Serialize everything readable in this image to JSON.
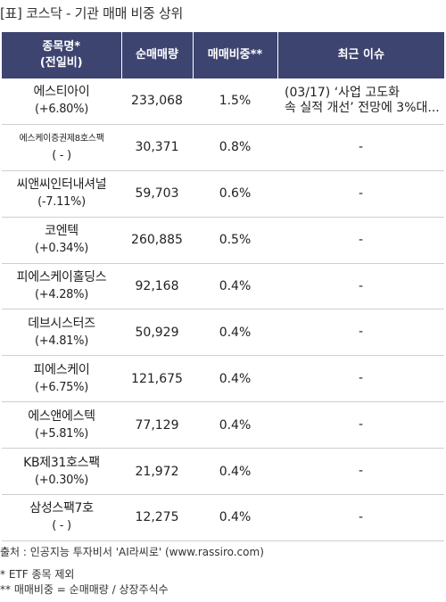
{
  "title": "[표] 코스닥 - 기관 매매 비중 상위",
  "headers": {
    "name_line1": "종목명*",
    "name_line2": "(전일비)",
    "volume": "순매매량",
    "ratio": "매매비중**",
    "issue": "최근 이슈"
  },
  "rows": [
    {
      "name": "에스티아이",
      "change": "(+6.80%)",
      "volume": "233,068",
      "ratio": "1.5%",
      "issue_line1": "(03/17) ‘사업 고도화",
      "issue_line2": "속 실적 개선’ 전망에 3%대..."
    },
    {
      "name": "에스케이증권제8호스팩",
      "change": "( - )",
      "volume": "30,371",
      "ratio": "0.8%",
      "issue_line1": "-",
      "issue_line2": ""
    },
    {
      "name": "씨앤씨인터내셔널",
      "change": "(-7.11%)",
      "volume": "59,703",
      "ratio": "0.6%",
      "issue_line1": "-",
      "issue_line2": ""
    },
    {
      "name": "코엔텍",
      "change": "(+0.34%)",
      "volume": "260,885",
      "ratio": "0.5%",
      "issue_line1": "-",
      "issue_line2": ""
    },
    {
      "name": "피에스케이홀딩스",
      "change": "(+4.28%)",
      "volume": "92,168",
      "ratio": "0.4%",
      "issue_line1": "-",
      "issue_line2": ""
    },
    {
      "name": "데브시스터즈",
      "change": "(+4.81%)",
      "volume": "50,929",
      "ratio": "0.4%",
      "issue_line1": "-",
      "issue_line2": ""
    },
    {
      "name": "피에스케이",
      "change": "(+6.75%)",
      "volume": "121,675",
      "ratio": "0.4%",
      "issue_line1": "-",
      "issue_line2": ""
    },
    {
      "name": "에스앤에스텍",
      "change": "(+5.81%)",
      "volume": "77,129",
      "ratio": "0.4%",
      "issue_line1": "-",
      "issue_line2": ""
    },
    {
      "name": "KB제31호스팩",
      "change": "(+0.30%)",
      "volume": "21,972",
      "ratio": "0.4%",
      "issue_line1": "-",
      "issue_line2": ""
    },
    {
      "name": "삼성스팩7호",
      "change": "( - )",
      "volume": "12,275",
      "ratio": "0.4%",
      "issue_line1": "-",
      "issue_line2": ""
    }
  ],
  "footer": {
    "source": "출처 : 인공지능 투자비서 'AI라씨로' (www.rassiro.com)",
    "note1": "* ETF 종목 제외",
    "note2": "** 매매비중 = 순매매량 / 상장주식수"
  },
  "colors": {
    "header_bg": "#3d4470",
    "header_text": "#ffffff",
    "ratio_text": "#e8151b"
  }
}
